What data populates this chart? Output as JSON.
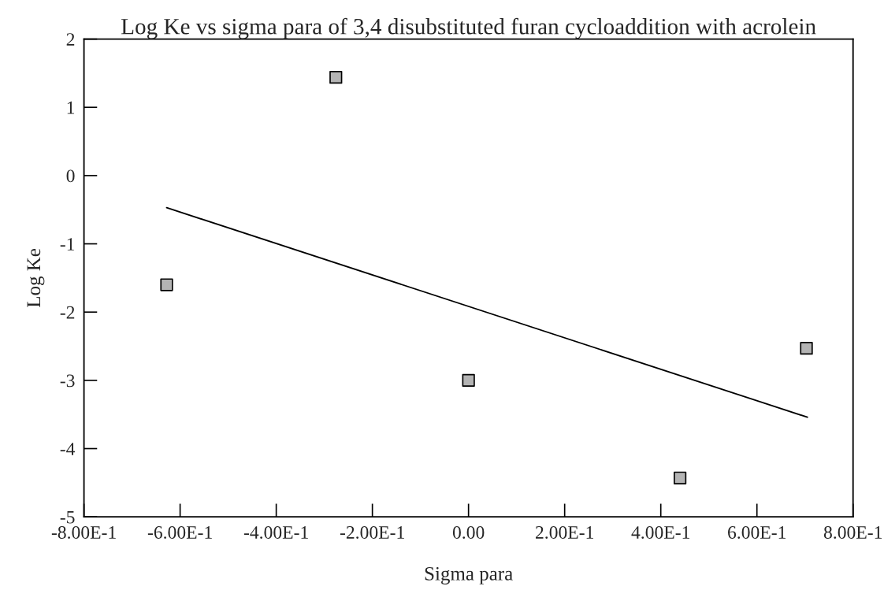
{
  "chart_data": {
    "type": "scatter",
    "title": "Log Ke vs sigma para of 3,4 disubstituted furan cycloaddition with acrolein",
    "xlabel": "Sigma para",
    "ylabel": "Log Ke",
    "series": [
      {
        "type": "scatter",
        "color": "#b4b4b4",
        "marker": "square",
        "x": [
          -0.628,
          -0.276,
          0.0,
          0.44,
          0.703
        ],
        "values": [
          -1.6,
          1.44,
          -3.0,
          -4.43,
          -2.53
        ]
      },
      {
        "type": "line",
        "color": "#000000",
        "marker": "none",
        "line_style": "solid",
        "x": [
          -0.628,
          0.705
        ],
        "values": [
          -0.47,
          -3.54
        ]
      }
    ],
    "xlim": [
      -0.8,
      0.8
    ],
    "ylim": [
      -5,
      2
    ],
    "xticks": [
      {
        "value": -0.8,
        "label": "-8.00E-1"
      },
      {
        "value": -0.6,
        "label": "-6.00E-1"
      },
      {
        "value": -0.4,
        "label": "-4.00E-1"
      },
      {
        "value": -0.2,
        "label": "-2.00E-1"
      },
      {
        "value": 0,
        "label": "0.00"
      },
      {
        "value": 0.2,
        "label": "2.00E-1"
      },
      {
        "value": 0.4,
        "label": "4.00E-1"
      },
      {
        "value": 0.6,
        "label": "6.00E-1"
      },
      {
        "value": 0.8,
        "label": "8.00E-1"
      }
    ],
    "yticks": [
      -5,
      -4,
      -3,
      -2,
      -1,
      0,
      1,
      2
    ],
    "grid": false,
    "legend": false
  }
}
